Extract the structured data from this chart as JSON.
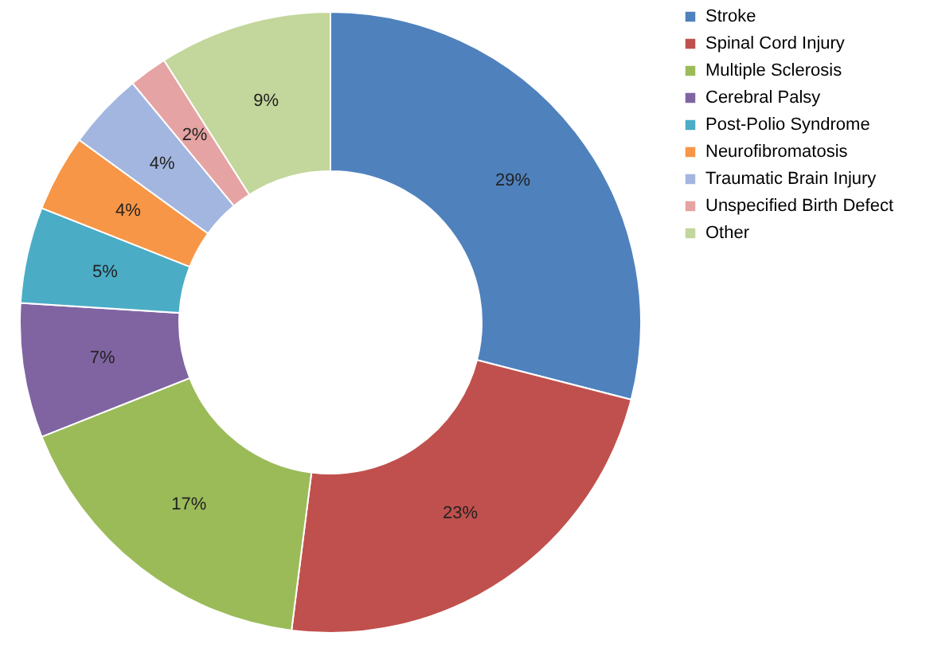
{
  "chart_data": {
    "type": "donut",
    "categories": [
      "Stroke",
      "Spinal Cord Injury",
      "Multiple Sclerosis",
      "Cerebral Palsy",
      "Post-Polio Syndrome",
      "Neurofibromatosis",
      "Traumatic Brain Injury",
      "Unspecified Birth Defect",
      "Other"
    ],
    "values": [
      29,
      23,
      17,
      7,
      5,
      4,
      4,
      2,
      9
    ],
    "value_labels": [
      "29%",
      "23%",
      "17%",
      "7%",
      "5%",
      "4%",
      "4%",
      "2%",
      "9%"
    ],
    "colors": [
      "#4f81bd",
      "#c0504d",
      "#9bbb59",
      "#8064a2",
      "#4bacc6",
      "#f79646",
      "#a3b6e0",
      "#e6a3a3",
      "#c3d69b"
    ],
    "legend": "right"
  }
}
